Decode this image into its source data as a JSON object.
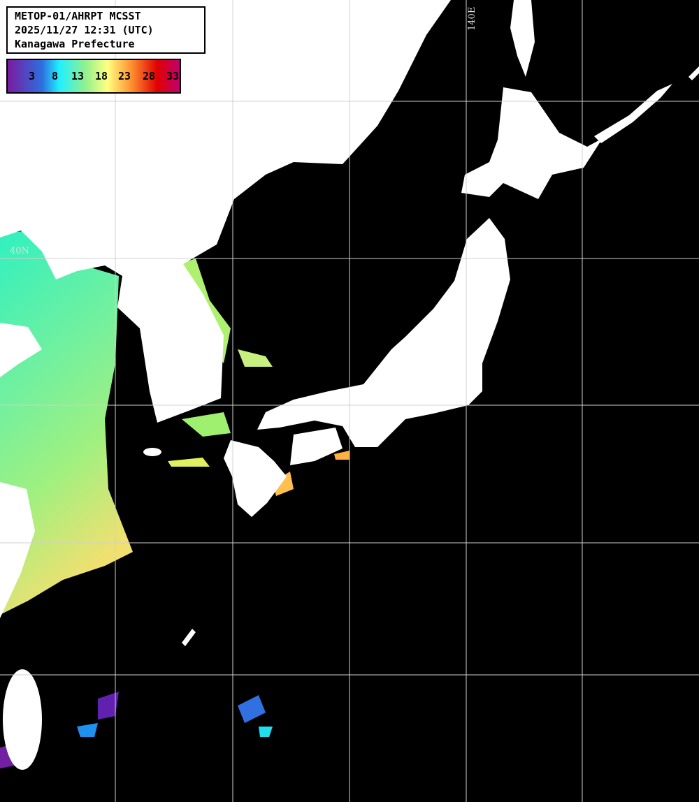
{
  "header": {
    "line1": "METOP-01/AHRPT MCSST",
    "line2": "2025/11/27 12:31 (UTC)",
    "line3": "Kanagawa Prefecture"
  },
  "colorbar": {
    "ticks": [
      "3",
      "8",
      "13",
      "18",
      "23",
      "28",
      "33"
    ],
    "colors": [
      "#7a1aa0",
      "#3050d0",
      "#20f0ff",
      "#90f090",
      "#ffff80",
      "#ff9030",
      "#e00000",
      "#c00070"
    ]
  },
  "grid": {
    "lon_label": "140E",
    "lat_label": "40N",
    "line_color": "#d0d0d0"
  },
  "colors": {
    "land": "#ffffff",
    "no_data": "#000000"
  }
}
